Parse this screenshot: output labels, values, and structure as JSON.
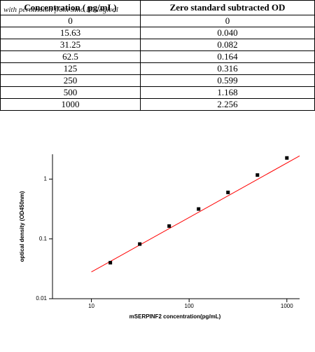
{
  "table": {
    "header": [
      "Concentration ( pg/mL)",
      "Zero standard subtracted OD"
    ],
    "watermark": "with permission from Sino Biological",
    "rows": [
      [
        "0",
        "0"
      ],
      [
        "15.63",
        "0.040"
      ],
      [
        "31.25",
        "0.082"
      ],
      [
        "62.5",
        "0.164"
      ],
      [
        "125",
        "0.316"
      ],
      [
        "250",
        "0.599"
      ],
      [
        "500",
        "1.168"
      ],
      [
        "1000",
        "2.256"
      ]
    ]
  },
  "chart_data": {
    "type": "scatter",
    "x_label": "mSERPINF2  concentration(pg/mL)",
    "y_label": "optical density (OD450nm)",
    "x": [
      15.63,
      31.25,
      62.5,
      125,
      250,
      500,
      1000
    ],
    "series": [
      {
        "color": "#000000",
        "values": [
          0.04,
          0.082,
          0.164,
          0.316,
          0.599,
          1.168,
          2.256
        ]
      }
    ],
    "fit": {
      "color": "#ff0000",
      "x": [
        10,
        1350
      ],
      "values": [
        0.028,
        2.44
      ]
    },
    "xlim": [
      4,
      1350
    ],
    "ylim": [
      0.01,
      2.6
    ],
    "xticks": [
      10,
      100,
      1000
    ],
    "yticks": [
      0.01,
      0.1,
      1
    ],
    "xscale": "log",
    "yscale": "log"
  }
}
